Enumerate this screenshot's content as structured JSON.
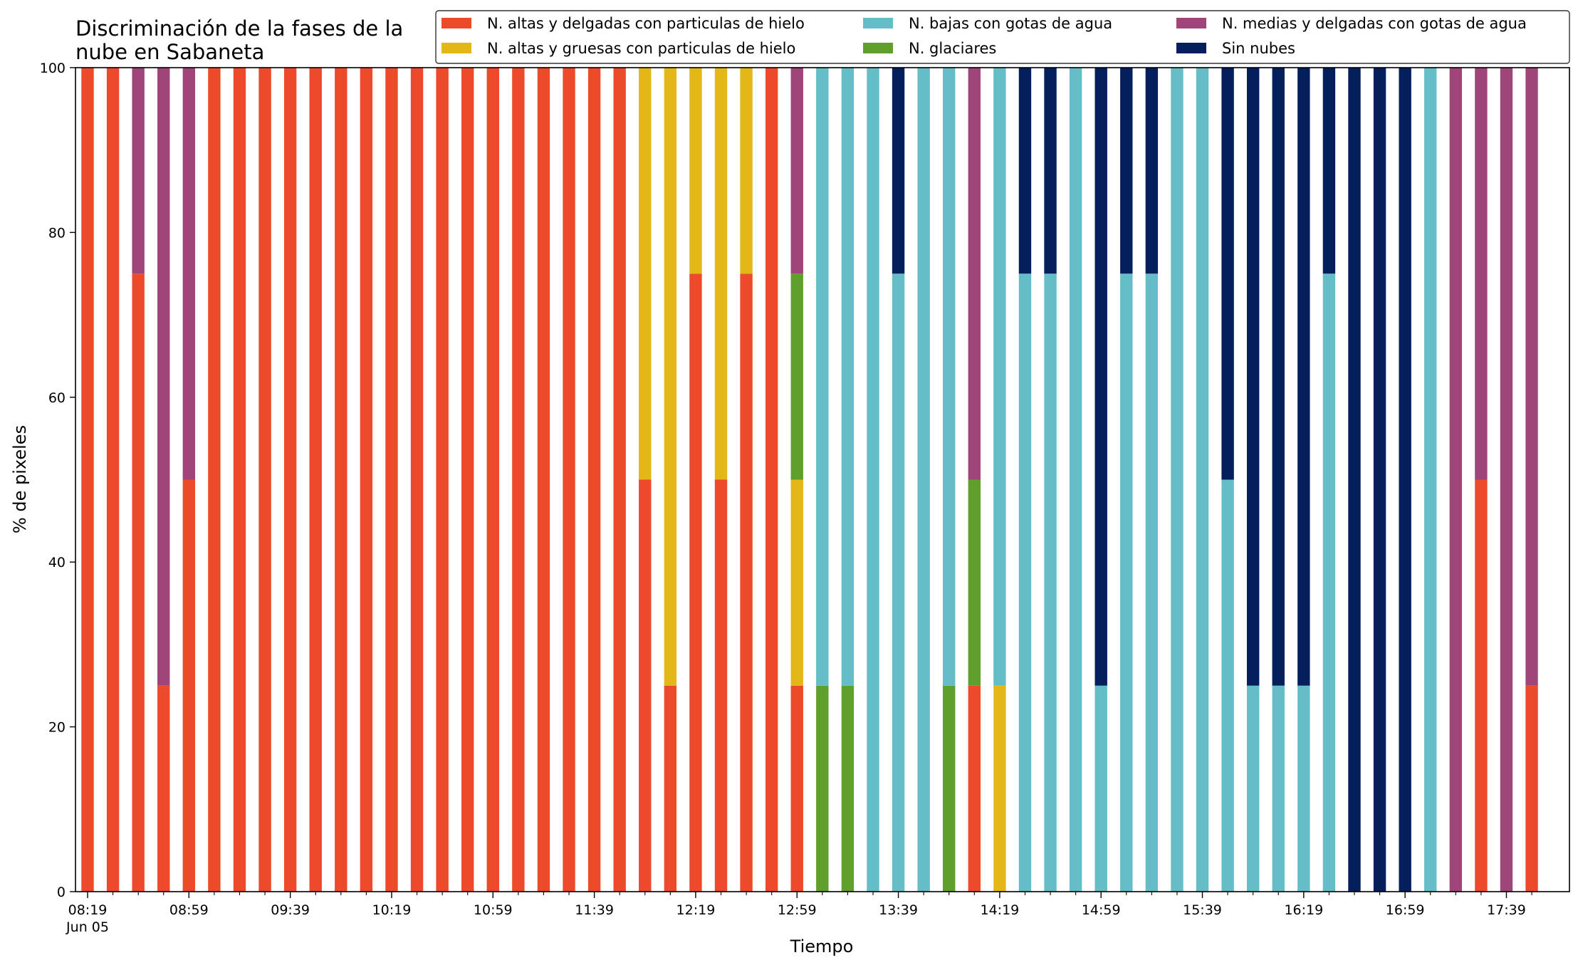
{
  "chart_data": {
    "type": "bar",
    "stacked": true,
    "title_lines": [
      "Discriminación de la fases de la",
      "nube en Sabaneta"
    ],
    "xlabel": "Tiempo",
    "ylabel": "% de pixeles",
    "ylim": [
      0,
      100
    ],
    "yticks": [
      0,
      20,
      40,
      60,
      80,
      100
    ],
    "xtick_labels": [
      {
        "index": 0,
        "label": "08:19",
        "sublabel": "Jun 05"
      },
      {
        "index": 4,
        "label": "08:59"
      },
      {
        "index": 8,
        "label": "09:39"
      },
      {
        "index": 12,
        "label": "10:19"
      },
      {
        "index": 16,
        "label": "10:59"
      },
      {
        "index": 20,
        "label": "11:39"
      },
      {
        "index": 24,
        "label": "12:19"
      },
      {
        "index": 28,
        "label": "12:59"
      },
      {
        "index": 32,
        "label": "13:39"
      },
      {
        "index": 36,
        "label": "14:19"
      },
      {
        "index": 40,
        "label": "14:59"
      },
      {
        "index": 44,
        "label": "15:39"
      },
      {
        "index": 48,
        "label": "16:19"
      },
      {
        "index": 52,
        "label": "16:59"
      },
      {
        "index": 56,
        "label": "17:39"
      }
    ],
    "legend_position": "top-right",
    "legend_columns": 3,
    "categories": [
      "08:19",
      "08:29",
      "08:39",
      "08:49",
      "08:59",
      "09:09",
      "09:19",
      "09:29",
      "09:39",
      "09:49",
      "09:59",
      "10:09",
      "10:19",
      "10:29",
      "10:39",
      "10:49",
      "10:59",
      "11:09",
      "11:19",
      "11:29",
      "11:39",
      "11:49",
      "11:59",
      "12:09",
      "12:19",
      "12:29",
      "12:39",
      "12:49",
      "12:59",
      "13:09",
      "13:19",
      "13:29",
      "13:39",
      "13:49",
      "13:59",
      "14:09",
      "14:19",
      "14:29",
      "14:39",
      "14:49",
      "14:59",
      "15:09",
      "15:19",
      "15:29",
      "15:39",
      "15:49",
      "15:59",
      "16:09",
      "16:19",
      "16:29",
      "16:39",
      "16:49",
      "16:59",
      "17:09",
      "17:19",
      "17:29",
      "17:39",
      "17:49"
    ],
    "series": [
      {
        "name": "N. altas y delgadas con particulas de hielo",
        "color": "#ed4a2c",
        "values": [
          100,
          100,
          75,
          25,
          50,
          100,
          100,
          100,
          100,
          100,
          100,
          100,
          100,
          100,
          100,
          100,
          100,
          100,
          100,
          100,
          100,
          100,
          50,
          25,
          75,
          50,
          75,
          100,
          25,
          0,
          0,
          0,
          0,
          0,
          0,
          25,
          0,
          0,
          0,
          0,
          0,
          0,
          0,
          0,
          0,
          0,
          0,
          0,
          0,
          0,
          0,
          0,
          0,
          0,
          0,
          50,
          0,
          25
        ]
      },
      {
        "name": "N. altas y gruesas con particulas de hielo",
        "color": "#e3b718",
        "values": [
          0,
          0,
          0,
          0,
          0,
          0,
          0,
          0,
          0,
          0,
          0,
          0,
          0,
          0,
          0,
          0,
          0,
          0,
          0,
          0,
          0,
          0,
          50,
          75,
          25,
          50,
          25,
          0,
          25,
          0,
          0,
          0,
          0,
          0,
          0,
          0,
          25,
          0,
          0,
          0,
          0,
          0,
          0,
          0,
          0,
          0,
          0,
          0,
          0,
          0,
          0,
          0,
          0,
          0,
          0,
          0,
          0,
          0
        ]
      },
      {
        "name": "N. glaciares",
        "color": "#5f9f2b",
        "values": [
          0,
          0,
          0,
          0,
          0,
          0,
          0,
          0,
          0,
          0,
          0,
          0,
          0,
          0,
          0,
          0,
          0,
          0,
          0,
          0,
          0,
          0,
          0,
          0,
          0,
          0,
          0,
          0,
          25,
          25,
          25,
          0,
          0,
          0,
          25,
          25,
          0,
          0,
          0,
          0,
          0,
          0,
          0,
          0,
          0,
          0,
          0,
          0,
          0,
          0,
          0,
          0,
          0,
          0,
          0,
          0,
          0,
          0
        ]
      },
      {
        "name": "N. bajas con gotas de agua",
        "color": "#65bdc8",
        "values": [
          0,
          0,
          0,
          0,
          0,
          0,
          0,
          0,
          0,
          0,
          0,
          0,
          0,
          0,
          0,
          0,
          0,
          0,
          0,
          0,
          0,
          0,
          0,
          0,
          0,
          0,
          0,
          0,
          0,
          75,
          75,
          100,
          75,
          100,
          75,
          0,
          75,
          75,
          75,
          100,
          25,
          75,
          75,
          100,
          100,
          50,
          25,
          25,
          25,
          75,
          0,
          0,
          0,
          100,
          0,
          0,
          0,
          0
        ]
      },
      {
        "name": "N. medias y delgadas con gotas de agua",
        "color": "#a0457a",
        "values": [
          0,
          0,
          25,
          75,
          50,
          0,
          0,
          0,
          0,
          0,
          0,
          0,
          0,
          0,
          0,
          0,
          0,
          0,
          0,
          0,
          0,
          0,
          0,
          0,
          0,
          0,
          0,
          0,
          25,
          0,
          0,
          0,
          0,
          0,
          0,
          50,
          0,
          0,
          0,
          0,
          0,
          0,
          0,
          0,
          0,
          0,
          0,
          0,
          0,
          0,
          0,
          0,
          0,
          0,
          100,
          50,
          100,
          75
        ]
      },
      {
        "name": "Sin nubes",
        "color": "#041f5c",
        "values": [
          0,
          0,
          0,
          0,
          0,
          0,
          0,
          0,
          0,
          0,
          0,
          0,
          0,
          0,
          0,
          0,
          0,
          0,
          0,
          0,
          0,
          0,
          0,
          0,
          0,
          0,
          0,
          0,
          0,
          0,
          0,
          0,
          25,
          0,
          0,
          0,
          0,
          25,
          25,
          0,
          75,
          25,
          25,
          0,
          0,
          50,
          75,
          75,
          75,
          25,
          100,
          100,
          100,
          0,
          0,
          0,
          0,
          0
        ]
      }
    ],
    "legend_order": [
      "N. altas y delgadas con particulas de hielo",
      "N. altas y gruesas con particulas de hielo",
      "N. bajas con gotas de agua",
      "N. glaciares",
      "N. medias y delgadas con gotas de agua",
      "Sin nubes"
    ]
  }
}
